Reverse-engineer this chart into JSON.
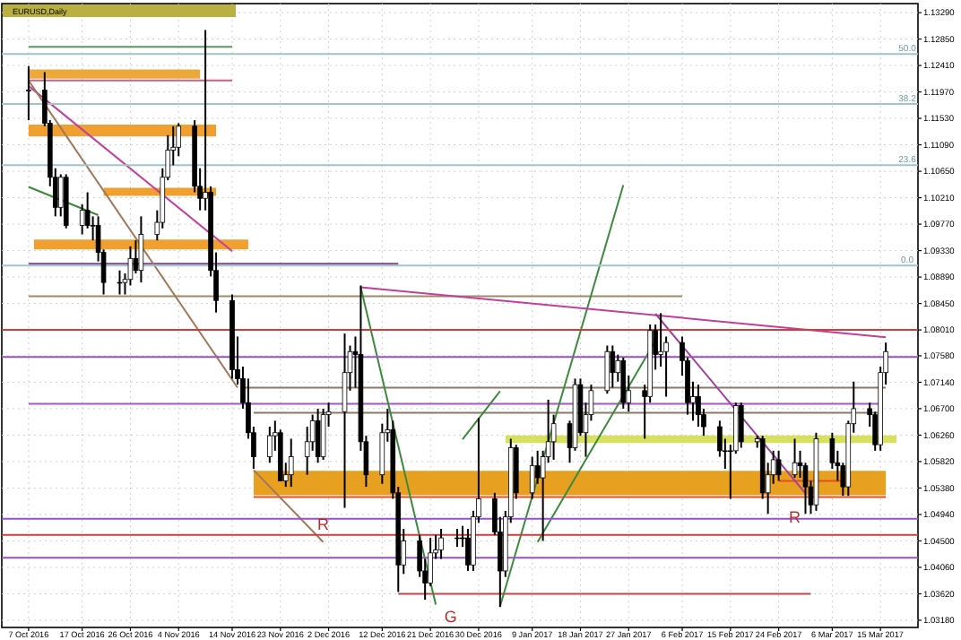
{
  "chart_data": {
    "type": "candlestick",
    "title": "EURUSD,Daily",
    "x": [
      "2016-10-07",
      "2016-10-10",
      "2016-10-11",
      "2016-10-12",
      "2016-10-13",
      "2016-10-14",
      "2016-10-17",
      "2016-10-18",
      "2016-10-19",
      "2016-10-20",
      "2016-10-21",
      "2016-10-24",
      "2016-10-25",
      "2016-10-26",
      "2016-10-27",
      "2016-10-28",
      "2016-10-31",
      "2016-11-01",
      "2016-11-02",
      "2016-11-03",
      "2016-11-04",
      "2016-11-07",
      "2016-11-08",
      "2016-11-09",
      "2016-11-10",
      "2016-11-11",
      "2016-11-14",
      "2016-11-15",
      "2016-11-16",
      "2016-11-17",
      "2016-11-18",
      "2016-11-21",
      "2016-11-22",
      "2016-11-23",
      "2016-11-24",
      "2016-11-25",
      "2016-11-28",
      "2016-11-29",
      "2016-11-30",
      "2016-12-01",
      "2016-12-02",
      "2016-12-05",
      "2016-12-06",
      "2016-12-07",
      "2016-12-08",
      "2016-12-09",
      "2016-12-12",
      "2016-12-13",
      "2016-12-14",
      "2016-12-15",
      "2016-12-16",
      "2016-12-19",
      "2016-12-20",
      "2016-12-21",
      "2016-12-22",
      "2016-12-23",
      "2016-12-26",
      "2016-12-27",
      "2016-12-28",
      "2016-12-29",
      "2016-12-30",
      "2017-01-02",
      "2017-01-03",
      "2017-01-04",
      "2017-01-05",
      "2017-01-06",
      "2017-01-09",
      "2017-01-10",
      "2017-01-11",
      "2017-01-12",
      "2017-01-13",
      "2017-01-16",
      "2017-01-17",
      "2017-01-18",
      "2017-01-19",
      "2017-01-20",
      "2017-01-23",
      "2017-01-24",
      "2017-01-25",
      "2017-01-26",
      "2017-01-27",
      "2017-01-30",
      "2017-01-31",
      "2017-02-01",
      "2017-02-02",
      "2017-02-03",
      "2017-02-06",
      "2017-02-07",
      "2017-02-08",
      "2017-02-09",
      "2017-02-10",
      "2017-02-13",
      "2017-02-14",
      "2017-02-15",
      "2017-02-16",
      "2017-02-17",
      "2017-02-20",
      "2017-02-21",
      "2017-02-22",
      "2017-02-23",
      "2017-02-24",
      "2017-02-27",
      "2017-02-28",
      "2017-03-01",
      "2017-03-02",
      "2017-03-03",
      "2017-03-06",
      "2017-03-07",
      "2017-03-08",
      "2017-03-09",
      "2017-03-10",
      "2017-03-13",
      "2017-03-14",
      "2017-03-15",
      "2017-03-16"
    ],
    "ohlc": [
      [
        1.12,
        1.124,
        1.115,
        1.12
      ],
      [
        1.12,
        1.123,
        1.114,
        1.1145
      ],
      [
        1.1145,
        1.115,
        1.104,
        1.1055
      ],
      [
        1.1055,
        1.107,
        1.099,
        1.1005
      ],
      [
        1.1005,
        1.106,
        1.099,
        1.1055
      ],
      [
        1.1055,
        1.106,
        1.097,
        1.0975
      ],
      [
        1.0975,
        1.101,
        1.096,
        1.1
      ],
      [
        1.1,
        1.103,
        1.097,
        1.0975
      ],
      [
        1.0975,
        1.099,
        1.095,
        1.0975
      ],
      [
        1.0975,
        1.099,
        1.0915,
        1.093
      ],
      [
        1.093,
        1.0935,
        1.086,
        1.088
      ],
      [
        1.088,
        1.09,
        1.086,
        1.088
      ],
      [
        1.088,
        1.0895,
        1.086,
        1.0885
      ],
      [
        1.0885,
        1.094,
        1.0875,
        1.092
      ],
      [
        1.092,
        1.095,
        1.0895,
        1.09
      ],
      [
        1.09,
        1.099,
        1.088,
        1.096
      ],
      [
        1.096,
        1.1,
        1.095,
        1.098
      ],
      [
        1.098,
        1.107,
        1.097,
        1.1055
      ],
      [
        1.1055,
        1.1125,
        1.105,
        1.11
      ],
      [
        1.11,
        1.114,
        1.1075,
        1.1105
      ],
      [
        1.1105,
        1.1145,
        1.109,
        1.114
      ],
      [
        1.114,
        1.115,
        1.103,
        1.104
      ],
      [
        1.104,
        1.107,
        1.1,
        1.102
      ],
      [
        1.102,
        1.13,
        1.1,
        1.103
      ],
      [
        1.103,
        1.104,
        1.089,
        1.09
      ],
      [
        1.09,
        1.093,
        1.083,
        1.085
      ],
      [
        1.085,
        1.086,
        1.072,
        1.0735
      ],
      [
        1.0735,
        1.079,
        1.071,
        1.072
      ],
      [
        1.072,
        1.074,
        1.067,
        1.068
      ],
      [
        1.068,
        1.072,
        1.062,
        1.063
      ],
      [
        1.063,
        1.064,
        1.057,
        1.059
      ],
      [
        1.059,
        1.064,
        1.058,
        1.0625
      ],
      [
        1.0625,
        1.065,
        1.06,
        1.063
      ],
      [
        1.063,
        1.0635,
        1.055,
        1.055
      ],
      [
        1.055,
        1.058,
        1.054,
        1.056
      ],
      [
        1.056,
        1.062,
        1.054,
        1.059
      ],
      [
        1.059,
        1.064,
        1.056,
        1.0615
      ],
      [
        1.0615,
        1.066,
        1.06,
        1.065
      ],
      [
        1.065,
        1.067,
        1.058,
        1.059
      ],
      [
        1.059,
        1.067,
        1.0585,
        1.066
      ],
      [
        1.066,
        1.068,
        1.064,
        1.0665
      ],
      [
        1.0665,
        1.0795,
        1.0505,
        1.073
      ],
      [
        1.073,
        1.0775,
        1.07,
        1.0765
      ],
      [
        1.0765,
        1.079,
        1.0705,
        1.076
      ],
      [
        1.076,
        1.0875,
        1.06,
        1.0615
      ],
      [
        1.0615,
        1.0625,
        1.054,
        1.056
      ],
      [
        1.056,
        1.0645,
        1.0545,
        1.063
      ],
      [
        1.063,
        1.067,
        1.0615,
        1.0635
      ],
      [
        1.0635,
        1.065,
        1.052,
        1.053
      ],
      [
        1.053,
        1.054,
        1.0365,
        1.041
      ],
      [
        1.041,
        1.047,
        1.0395,
        1.045
      ],
      [
        1.045,
        1.046,
        1.039,
        1.04
      ],
      [
        1.04,
        1.042,
        1.0352,
        1.038
      ],
      [
        1.038,
        1.0455,
        1.0375,
        1.043
      ],
      [
        1.043,
        1.046,
        1.042,
        1.0435
      ],
      [
        1.0435,
        1.047,
        1.042,
        1.0455
      ],
      [
        1.0455,
        1.047,
        1.044,
        1.0455
      ],
      [
        1.0455,
        1.0475,
        1.044,
        1.0455
      ],
      [
        1.0455,
        1.047,
        1.04,
        1.041
      ],
      [
        1.041,
        1.05,
        1.04,
        1.049
      ],
      [
        1.049,
        1.0655,
        1.048,
        1.052
      ],
      [
        1.052,
        1.053,
        1.046,
        1.0465
      ],
      [
        1.0465,
        1.049,
        1.034,
        1.04
      ],
      [
        1.04,
        1.05,
        1.039,
        1.049
      ],
      [
        1.049,
        1.062,
        1.048,
        1.0605
      ],
      [
        1.0605,
        1.061,
        1.052,
        1.053
      ],
      [
        1.053,
        1.059,
        1.052,
        1.0575
      ],
      [
        1.0575,
        1.06,
        1.0545,
        1.0555
      ],
      [
        1.0555,
        1.06,
        1.045,
        1.059
      ],
      [
        1.059,
        1.0685,
        1.058,
        1.0615
      ],
      [
        1.0615,
        1.066,
        1.0585,
        1.0645
      ],
      [
        1.0645,
        1.065,
        1.058,
        1.0605
      ],
      [
        1.0605,
        1.072,
        1.06,
        1.071
      ],
      [
        1.071,
        1.072,
        1.0625,
        1.063
      ],
      [
        1.063,
        1.068,
        1.059,
        1.066
      ],
      [
        1.066,
        1.071,
        1.065,
        1.07
      ],
      [
        1.07,
        1.0775,
        1.0695,
        1.0765
      ],
      [
        1.0765,
        1.0775,
        1.0705,
        1.073
      ],
      [
        1.073,
        1.076,
        1.0715,
        1.075
      ],
      [
        1.075,
        1.0755,
        1.067,
        1.068
      ],
      [
        1.068,
        1.0725,
        1.0665,
        1.07
      ],
      [
        1.07,
        1.071,
        1.062,
        1.069
      ],
      [
        1.069,
        1.081,
        1.068,
        1.08
      ],
      [
        1.08,
        1.081,
        1.0735,
        1.076
      ],
      [
        1.076,
        1.0829,
        1.074,
        1.0765
      ],
      [
        1.0765,
        1.079,
        1.069,
        1.078
      ],
      [
        1.078,
        1.079,
        1.0725,
        1.075
      ],
      [
        1.075,
        1.0755,
        1.066,
        1.068
      ],
      [
        1.068,
        1.0715,
        1.065,
        1.069
      ],
      [
        1.069,
        1.071,
        1.064,
        1.066
      ],
      [
        1.066,
        1.067,
        1.0625,
        1.064
      ],
      [
        1.064,
        1.065,
        1.059,
        1.06
      ],
      [
        1.06,
        1.062,
        1.057,
        1.06
      ],
      [
        1.06,
        1.061,
        1.052,
        1.06
      ],
      [
        1.06,
        1.068,
        1.0595,
        1.0675
      ],
      [
        1.0675,
        1.068,
        1.0605,
        1.0615
      ],
      [
        1.0615,
        1.0625,
        1.0605,
        1.062
      ],
      [
        1.062,
        1.0625,
        1.052,
        1.053
      ],
      [
        1.053,
        1.058,
        1.0495,
        1.056
      ],
      [
        1.056,
        1.06,
        1.0545,
        1.0585
      ],
      [
        1.0585,
        1.06,
        1.055,
        1.056
      ],
      [
        1.056,
        1.062,
        1.0555,
        1.058
      ],
      [
        1.058,
        1.06,
        1.0555,
        1.0575
      ],
      [
        1.0575,
        1.058,
        1.0495,
        1.054
      ],
      [
        1.054,
        1.055,
        1.0495,
        1.051
      ],
      [
        1.051,
        1.063,
        1.05,
        1.062
      ],
      [
        1.062,
        1.063,
        1.057,
        1.058
      ],
      [
        1.058,
        1.06,
        1.055,
        1.0575
      ],
      [
        1.0575,
        1.058,
        1.0525,
        1.054
      ],
      [
        1.054,
        1.065,
        1.0525,
        1.0645
      ],
      [
        1.0645,
        1.0715,
        1.063,
        1.067
      ],
      [
        1.067,
        1.068,
        1.064,
        1.066
      ],
      [
        1.066,
        1.0665,
        1.06,
        1.061
      ],
      [
        1.061,
        1.074,
        1.06,
        1.073
      ],
      [
        1.073,
        1.078,
        1.071,
        1.0765
      ]
    ],
    "series": [
      {
        "type": "line",
        "color": "#e8a020",
        "x": [
          "2016-11-18",
          "2017-03-16"
        ],
        "values": [
          1.0565,
          1.0565
        ],
        "lower": [
          1.0526,
          1.0526
        ],
        "upper": [
          1.0565,
          1.0565
        ]
      },
      {
        "type": "line",
        "color": "#d8e060",
        "x": [
          "2017-01-04",
          "2017-03-18"
        ],
        "values": [
          1.0624,
          1.0624
        ],
        "lower": [
          1.0613,
          1.0613
        ],
        "upper": [
          1.0624,
          1.0624
        ]
      },
      {
        "type": "line",
        "color": "#eda83a",
        "x": [
          "2016-10-07",
          "2016-11-08"
        ],
        "values": [
          1.1233,
          1.1233
        ],
        "lower": [
          1.1219,
          1.1219
        ],
        "upper": [
          1.1233,
          1.1233
        ]
      },
      {
        "type": "line",
        "color": "#f0a030",
        "x": [
          "2016-10-07",
          "2016-11-11"
        ],
        "values": [
          1.1141,
          1.1141
        ],
        "lower": [
          1.1123,
          1.1123
        ],
        "upper": [
          1.1141,
          1.1141
        ]
      },
      {
        "type": "line",
        "color": "#f0a030",
        "x": [
          "2016-10-21",
          "2016-11-11"
        ],
        "values": [
          1.1036,
          1.1036
        ],
        "lower": [
          1.1024,
          1.1024
        ],
        "upper": [
          1.1036,
          1.1036
        ]
      },
      {
        "type": "line",
        "color": "#f0a030",
        "x": [
          "2016-10-08",
          "2016-11-17"
        ],
        "values": [
          1.095,
          1.095
        ],
        "lower": [
          1.0935,
          1.0935
        ],
        "upper": [
          1.095,
          1.095
        ]
      },
      {
        "type": "line",
        "color": "#5a9a5a",
        "x": [
          "2016-10-07",
          "2016-11-14"
        ],
        "values": [
          1.1272,
          1.1272
        ]
      },
      {
        "type": "line",
        "color": "#d06080",
        "x": [
          "2016-10-07",
          "2016-11-14"
        ],
        "values": [
          1.1216,
          1.1216
        ]
      },
      {
        "type": "line",
        "color": "#a08a6a",
        "x": [
          "2016-10-07",
          "2017-02-06"
        ],
        "values": [
          1.0857,
          1.0857
        ]
      },
      {
        "type": "line",
        "color": "#8b3a9b",
        "x": [
          "2016-10-07",
          "2016-12-15"
        ],
        "values": [
          1.0911,
          1.0911
        ]
      },
      {
        "type": "line",
        "color": "#8a7a6a",
        "x": [
          "2016-11-16",
          "2017-03-16"
        ],
        "values": [
          1.0705,
          1.0705
        ]
      },
      {
        "type": "line",
        "color": "#8a7a6a",
        "x": [
          "2016-11-18",
          "2017-03-15"
        ],
        "values": [
          1.0663,
          1.0663
        ]
      },
      {
        "type": "line",
        "color": "#a855c8",
        "x": [
          "2016-10-07",
          "2017-03-15"
        ],
        "values": [
          1.0678,
          1.0678
        ]
      },
      {
        "type": "line",
        "color": "#d04040",
        "x": [
          "2016-12-15",
          "2017-03-02"
        ],
        "values": [
          1.0362,
          1.0362
        ]
      },
      {
        "type": "line",
        "color": "#e05020",
        "x": [
          "2016-11-18",
          "2017-03-16"
        ],
        "values": [
          1.0523,
          1.0523
        ]
      },
      {
        "type": "line",
        "color": "#e05020",
        "x": [
          "2017-02-24",
          "2017-03-08"
        ],
        "values": [
          1.055,
          1.055
        ]
      },
      {
        "type": "line",
        "color": "#c0409a",
        "x": [
          "2016-10-07",
          "2016-11-14"
        ],
        "values": [
          1.1207,
          1.0932
        ]
      },
      {
        "type": "line",
        "color": "#a0785a",
        "x": [
          "2016-10-07",
          "2016-11-15"
        ],
        "values": [
          1.1216,
          1.0705
        ]
      },
      {
        "type": "line",
        "color": "#a0785a",
        "x": [
          "2016-11-18",
          "2016-12-01"
        ],
        "values": [
          1.0568,
          1.0448
        ]
      },
      {
        "type": "line",
        "color": "#3c8a3c",
        "x": [
          "2016-10-07",
          "2016-10-20"
        ],
        "values": [
          1.1039,
          1.0992
        ]
      },
      {
        "type": "line",
        "color": "#3c8a3c",
        "x": [
          "2016-12-08",
          "2016-12-22"
        ],
        "values": [
          1.0872,
          1.0344
        ]
      },
      {
        "type": "line",
        "color": "#3c8a3c",
        "x": [
          "2017-01-03",
          "2017-01-26"
        ],
        "values": [
          1.0341,
          1.1042
        ]
      },
      {
        "type": "line",
        "color": "#3c8a3c",
        "x": [
          "2016-12-27",
          "2017-01-03"
        ],
        "values": [
          1.0619,
          1.0699
        ]
      },
      {
        "type": "line",
        "color": "#3c8a3c",
        "x": [
          "2017-01-10",
          "2017-02-01"
        ],
        "values": [
          1.0448,
          1.0783
        ]
      },
      {
        "type": "line",
        "color": "#c0409a",
        "x": [
          "2016-12-08",
          "2017-03-16"
        ],
        "values": [
          1.0872,
          1.0789
        ]
      },
      {
        "type": "line",
        "color": "#a040a0",
        "x": [
          "2017-02-01",
          "2017-03-01"
        ],
        "values": [
          1.0828,
          1.0529
        ]
      }
    ],
    "ref_lines": [
      {
        "axis": "y",
        "value": 1.126,
        "color": "#9fc4c9"
      },
      {
        "axis": "y",
        "value": 1.1177,
        "color": "#9fc4c9"
      },
      {
        "axis": "y",
        "value": 1.1075,
        "color": "#9fc4c9"
      },
      {
        "axis": "y",
        "value": 1.0908,
        "color": "#9fc4c9"
      },
      {
        "axis": "y",
        "value": 1.0801,
        "color": "#d23c3c"
      },
      {
        "axis": "y",
        "value": 1.0756,
        "color": "#9b4fc8"
      },
      {
        "axis": "y",
        "value": 1.0487,
        "color": "#9b4fc8"
      },
      {
        "axis": "y",
        "value": 1.046,
        "color": "#d23c3c"
      },
      {
        "axis": "y",
        "value": 1.0422,
        "color": "#9b4fc8"
      }
    ],
    "annotations": [
      {
        "text": "50.0",
        "x": "2017-03-20",
        "y": 1.126
      },
      {
        "text": "38.2",
        "x": "2017-03-20",
        "y": 1.1177
      },
      {
        "text": "23.6",
        "x": "2017-03-20",
        "y": 1.1075
      },
      {
        "text": "0.0",
        "x": "2017-03-20",
        "y": 1.0908
      },
      {
        "text": "R",
        "x": "2016-12-01",
        "y": 1.0448
      },
      "G",
      {
        "text": "R",
        "x": "2017-02-27",
        "y": 1.046
      }
    ],
    "xlim": [
      "2016-10-02",
      "2017-03-22"
    ],
    "xticks": [
      {
        "value": "2016-10-07",
        "label": "7 Oct 2016"
      },
      {
        "value": "2016-10-17",
        "label": "17 Oct 2016"
      },
      {
        "value": "2016-10-26",
        "label": "26 Oct 2016"
      },
      {
        "value": "2016-11-04",
        "label": "4 Nov 2016"
      },
      {
        "value": "2016-11-14",
        "label": "14 Nov 2016"
      },
      {
        "value": "2016-11-23",
        "label": "23 Nov 2016"
      },
      {
        "value": "2016-12-02",
        "label": "2 Dec 2016"
      },
      {
        "value": "2016-12-12",
        "label": "12 Dec 2016"
      },
      {
        "value": "2016-12-21",
        "label": "21 Dec 2016"
      },
      {
        "value": "2016-12-30",
        "label": "30 Dec 2016"
      },
      {
        "value": "2017-01-09",
        "label": "9 Jan 2017"
      },
      {
        "value": "2017-01-18",
        "label": "18 Jan 2017"
      },
      {
        "value": "2017-01-27",
        "label": "27 Jan 2017"
      },
      {
        "value": "2017-02-06",
        "label": "6 Feb 2017"
      },
      {
        "value": "2017-02-15",
        "label": "15 Feb 2017"
      },
      {
        "value": "2017-02-24",
        "label": "24 Feb 2017"
      },
      {
        "value": "2017-03-06",
        "label": "6 Mar 2017"
      },
      {
        "value": "2017-03-15",
        "label": "15 Mar 2017"
      }
    ],
    "ylim": [
      1.0306,
      1.1344
    ],
    "yticks": [
      {
        "value": 1.1329,
        "label": "1.13290"
      },
      {
        "value": 1.1285,
        "label": "1.12850"
      },
      {
        "value": 1.1241,
        "label": "1.12410"
      },
      {
        "value": 1.1197,
        "label": "1.11970"
      },
      {
        "value": 1.1153,
        "label": "1.11530"
      },
      {
        "value": 1.1109,
        "label": "1.11090"
      },
      {
        "value": 1.1065,
        "label": "1.10650"
      },
      {
        "value": 1.1021,
        "label": "1.10210"
      },
      {
        "value": 1.0977,
        "label": "1.09770"
      },
      {
        "value": 1.0933,
        "label": "1.09330"
      },
      {
        "value": 1.0889,
        "label": "1.08890"
      },
      {
        "value": 1.0845,
        "label": "1.08450"
      },
      {
        "value": 1.0801,
        "label": "1.08010"
      },
      {
        "value": 1.0758,
        "label": "1.07580"
      },
      {
        "value": 1.0714,
        "label": "1.07140"
      },
      {
        "value": 1.067,
        "label": "1.06700"
      },
      {
        "value": 1.0626,
        "label": "1.06260"
      },
      {
        "value": 1.0582,
        "label": "1.05820"
      },
      {
        "value": 1.0538,
        "label": "1.05380"
      },
      {
        "value": 1.0494,
        "label": "1.04940"
      },
      {
        "value": 1.045,
        "label": "1.04500"
      },
      {
        "value": 1.0406,
        "label": "1.04060"
      },
      {
        "value": 1.0362,
        "label": "1.03620"
      },
      {
        "value": 1.0318,
        "label": "1.03180"
      }
    ],
    "grid": true
  }
}
